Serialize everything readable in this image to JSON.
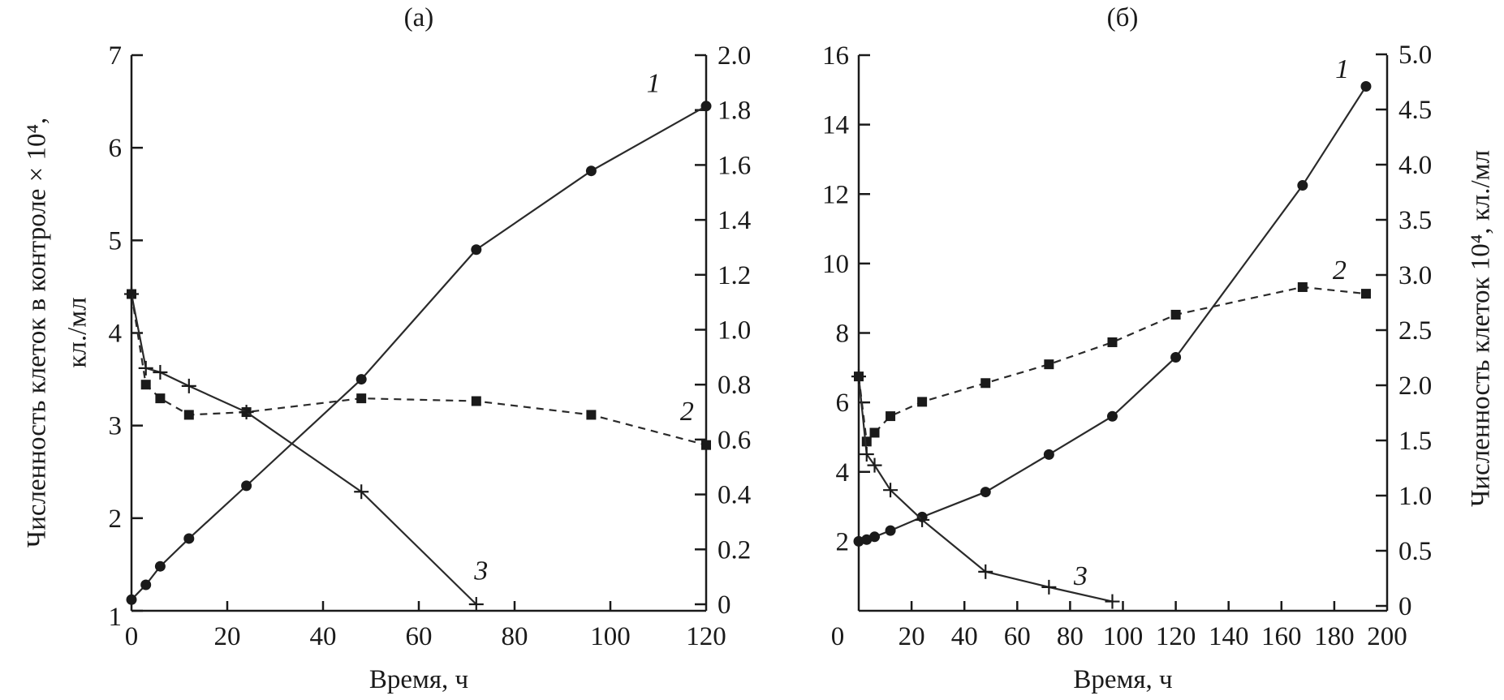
{
  "chart_data": [
    {
      "type": "line",
      "title": "(а)",
      "xlabel": "Время, ч",
      "ylabel_left": [
        "Численность клеток в контроле × 10⁴,",
        "кл./мл"
      ],
      "ylabel_right": "",
      "xlim": [
        0,
        120
      ],
      "ylim_left": [
        1,
        7
      ],
      "ylim_right": [
        0,
        2.0
      ],
      "x_ticks": [
        "0",
        "20",
        "40",
        "60",
        "80",
        "100",
        "120"
      ],
      "y_left_ticks": [
        "1",
        "2",
        "3",
        "4",
        "5",
        "6",
        "7"
      ],
      "y_right_ticks": [
        "0",
        "0.2",
        "0.4",
        "0.6",
        "0.8",
        "1.0",
        "1.2",
        "1.4",
        "1.6",
        "1.8",
        "2.0"
      ],
      "grid": false,
      "series": [
        {
          "name": "1",
          "axis": "left",
          "marker": "circle",
          "line": "solid",
          "x": [
            0,
            3,
            6,
            12,
            24,
            48,
            72,
            96,
            120
          ],
          "y": [
            1.12,
            1.28,
            1.48,
            1.78,
            2.35,
            3.5,
            4.9,
            5.75,
            6.45
          ]
        },
        {
          "name": "2",
          "axis": "right",
          "marker": "square",
          "line": "dashed",
          "x": [
            0,
            3,
            6,
            12,
            24,
            48,
            72,
            96,
            120
          ],
          "y": [
            1.13,
            0.8,
            0.75,
            0.69,
            0.7,
            0.75,
            0.74,
            0.69,
            0.58
          ]
        },
        {
          "name": "3",
          "axis": "right",
          "marker": "plus",
          "line": "solid",
          "x": [
            0,
            3,
            6,
            12,
            24,
            48,
            72
          ],
          "y": [
            1.13,
            0.86,
            0.845,
            0.795,
            0.7,
            0.41,
            0
          ]
        }
      ]
    },
    {
      "type": "line",
      "title": "(б)",
      "xlabel": "Время, ч",
      "ylabel_left": [],
      "ylabel_right": "Численность клеток 10⁴, кл./мл",
      "xlim": [
        0,
        200
      ],
      "ylim_left": [
        0,
        16
      ],
      "ylim_right": [
        0,
        5.0
      ],
      "x_ticks": [
        "0",
        "20",
        "40",
        "60",
        "80",
        "100",
        "120",
        "140",
        "160",
        "180",
        "200"
      ],
      "y_left_ticks": [
        "2",
        "4",
        "6",
        "8",
        "10",
        "12",
        "14",
        "16"
      ],
      "y_right_ticks": [
        "0",
        "0.5",
        "1.0",
        "1.5",
        "2.0",
        "2.5",
        "3.0",
        "3.5",
        "4.0",
        "4.5",
        "5.0"
      ],
      "grid": false,
      "series": [
        {
          "name": "1",
          "axis": "left",
          "marker": "circle",
          "line": "solid",
          "x": [
            0,
            3,
            6,
            12,
            24,
            48,
            72,
            96,
            120,
            168,
            192
          ],
          "y": [
            2.0,
            2.05,
            2.13,
            2.31,
            2.7,
            3.42,
            4.5,
            5.6,
            7.3,
            12.25,
            15.1
          ]
        },
        {
          "name": "2",
          "axis": "right",
          "marker": "square",
          "line": "dashed",
          "x": [
            0,
            3,
            6,
            12,
            24,
            48,
            72,
            96,
            120,
            168,
            192
          ],
          "y": [
            2.08,
            1.49,
            1.57,
            1.72,
            1.85,
            2.02,
            2.19,
            2.39,
            2.64,
            2.89,
            2.83
          ]
        },
        {
          "name": "3",
          "axis": "right",
          "marker": "plus",
          "line": "solid",
          "x": [
            0,
            3,
            6,
            12,
            24,
            48,
            72,
            96
          ],
          "y": [
            2.08,
            1.375,
            1.275,
            1.05,
            0.78,
            0.31,
            0.17,
            0.04
          ]
        }
      ]
    }
  ]
}
